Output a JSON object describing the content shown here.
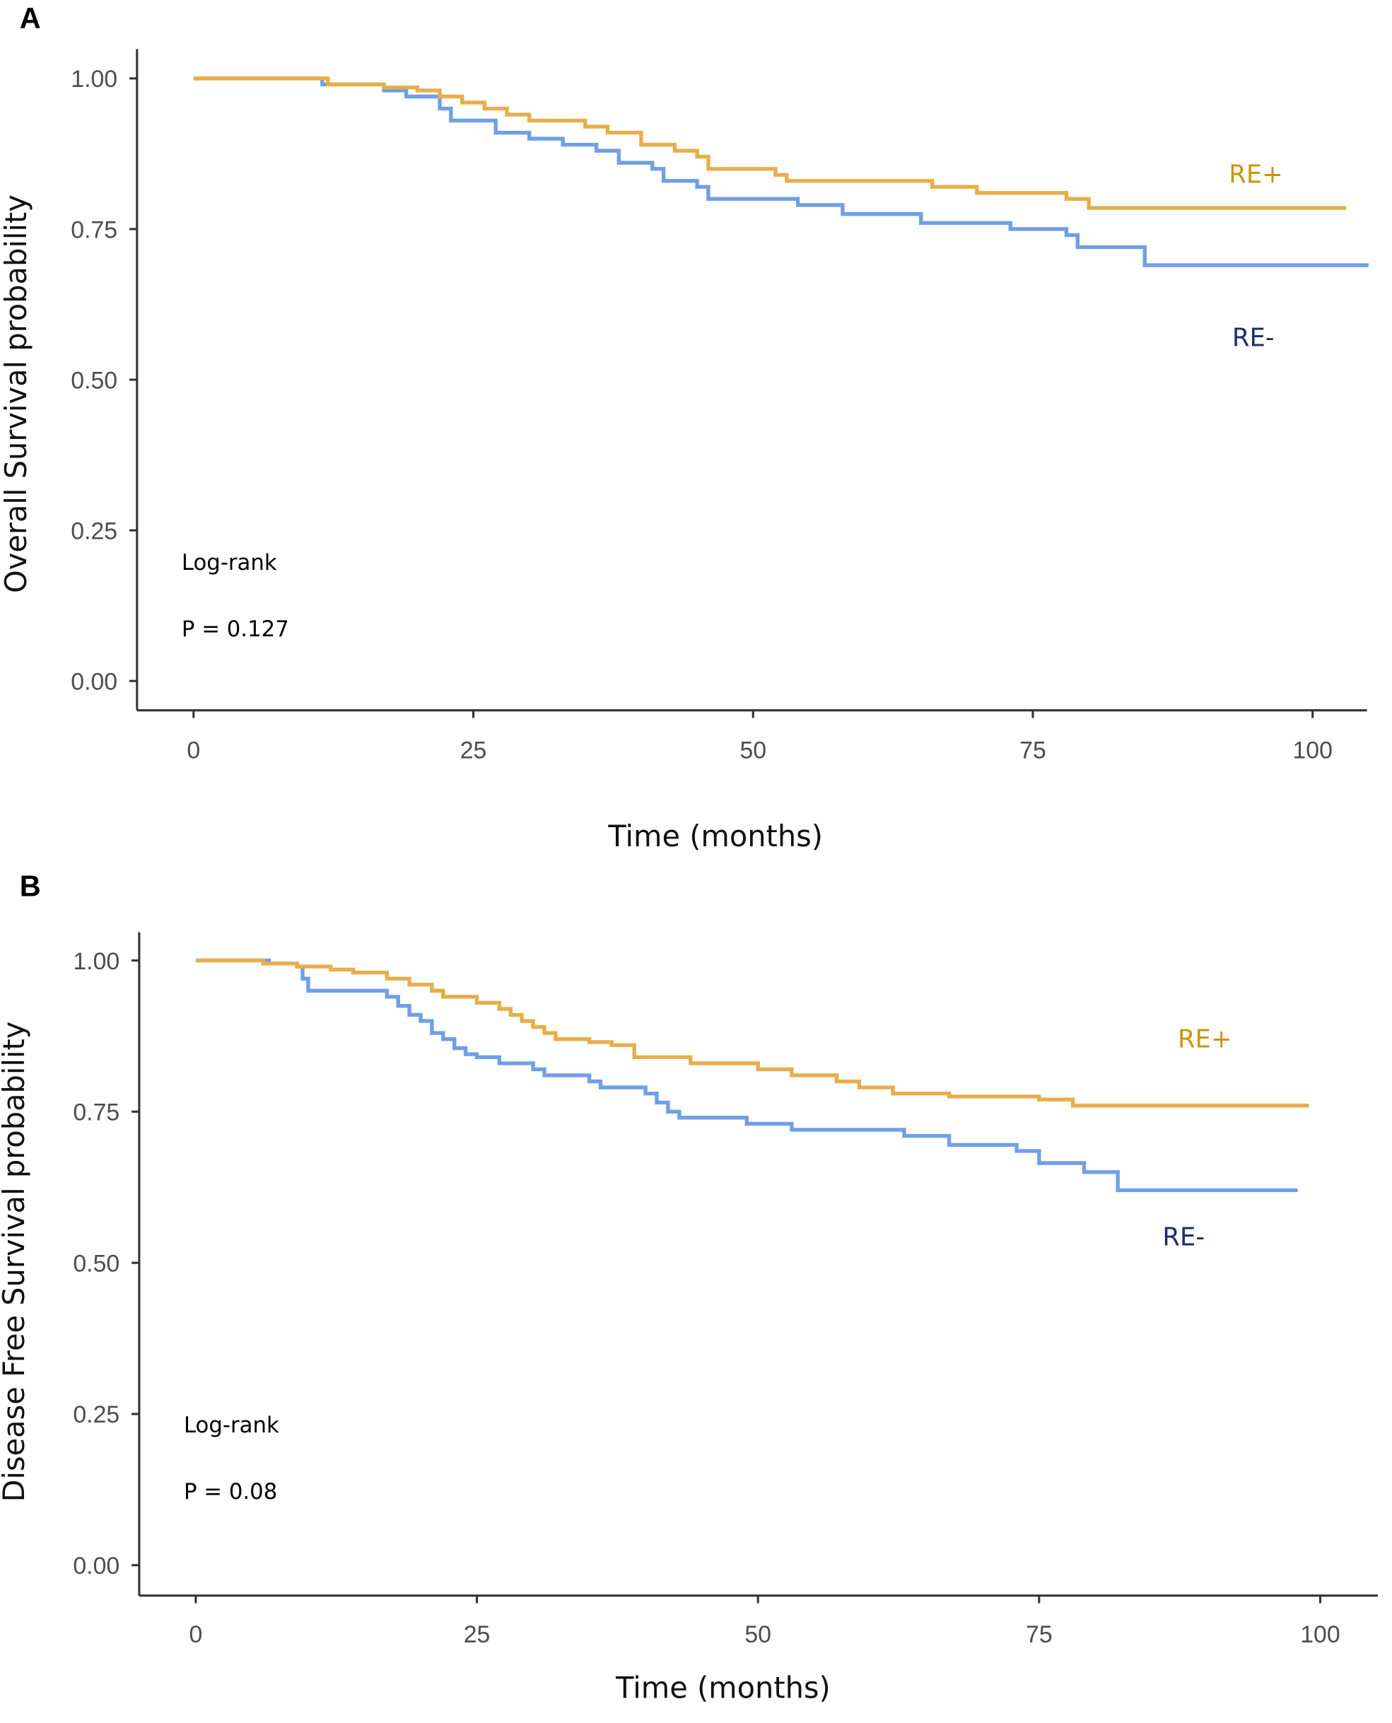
{
  "colors": {
    "re_pos": "#E8AE4A",
    "re_neg": "#6F9FE6",
    "re_pos_label": "#C8960A",
    "re_neg_label": "#1A2E6B",
    "axis": "#333333"
  },
  "chart_data": [
    {
      "type": "line",
      "panel": "A",
      "title": "",
      "xlabel": "Time (months)",
      "ylabel": "Overall Survival probability",
      "xlim": [
        0,
        105
      ],
      "ylim": [
        0,
        1
      ],
      "xticks": [
        0,
        25,
        50,
        75,
        100
      ],
      "yticks": [
        "0.00",
        "0.25",
        "0.50",
        "0.75",
        "1.00"
      ],
      "annotation": [
        "Log-rank",
        "P = 0.127"
      ],
      "grid": false,
      "step": true,
      "series": [
        {
          "name": "RE+",
          "x": [
            0,
            12,
            17,
            20,
            22,
            24,
            26,
            28,
            30,
            35,
            37,
            40,
            43,
            45,
            46,
            52,
            53,
            66,
            70,
            78,
            80,
            103
          ],
          "y": [
            1.0,
            0.99,
            0.985,
            0.98,
            0.97,
            0.96,
            0.95,
            0.94,
            0.93,
            0.92,
            0.91,
            0.89,
            0.88,
            0.87,
            0.85,
            0.84,
            0.83,
            0.82,
            0.81,
            0.8,
            0.785,
            0.785
          ]
        },
        {
          "name": "RE-",
          "x": [
            0,
            11.5,
            17,
            19,
            22,
            23,
            27,
            30,
            33,
            36,
            38,
            41,
            42,
            45,
            46,
            54,
            58,
            65,
            73,
            78,
            79,
            85,
            105
          ],
          "y": [
            1.0,
            0.99,
            0.98,
            0.97,
            0.95,
            0.93,
            0.91,
            0.9,
            0.89,
            0.88,
            0.86,
            0.85,
            0.83,
            0.82,
            0.8,
            0.79,
            0.775,
            0.76,
            0.75,
            0.74,
            0.72,
            0.69,
            0.69
          ]
        }
      ]
    },
    {
      "type": "line",
      "panel": "B",
      "title": "",
      "xlabel": "Time (months)",
      "ylabel": "Disease Free Survival probability",
      "xlim": [
        0,
        105
      ],
      "ylim": [
        0,
        1
      ],
      "xticks": [
        0,
        25,
        50,
        75,
        100
      ],
      "yticks": [
        "0.00",
        "0.25",
        "0.50",
        "0.75",
        "1.00"
      ],
      "annotation": [
        "Log-rank",
        "P = 0.08"
      ],
      "grid": false,
      "step": true,
      "series": [
        {
          "name": "RE+",
          "x": [
            0,
            6,
            9,
            12,
            14,
            17,
            19,
            21,
            22,
            25,
            27,
            28,
            29,
            30,
            31,
            32,
            35,
            37,
            39,
            44,
            50,
            53,
            57,
            59,
            62,
            67,
            75,
            78,
            99
          ],
          "y": [
            1.0,
            0.995,
            0.99,
            0.985,
            0.98,
            0.97,
            0.96,
            0.95,
            0.94,
            0.93,
            0.92,
            0.91,
            0.9,
            0.89,
            0.88,
            0.87,
            0.865,
            0.86,
            0.84,
            0.83,
            0.82,
            0.81,
            0.8,
            0.79,
            0.78,
            0.775,
            0.77,
            0.76,
            0.76
          ]
        },
        {
          "name": "RE-",
          "x": [
            0,
            6.5,
            9,
            9.5,
            10,
            17,
            18,
            19,
            20,
            21,
            22,
            23,
            24,
            25,
            27,
            30,
            31,
            35,
            36,
            40,
            41,
            42,
            43,
            49,
            53,
            63,
            67,
            73,
            75,
            79,
            82,
            98
          ],
          "y": [
            1.0,
            0.995,
            0.99,
            0.97,
            0.95,
            0.94,
            0.925,
            0.91,
            0.9,
            0.88,
            0.87,
            0.855,
            0.845,
            0.84,
            0.83,
            0.82,
            0.81,
            0.8,
            0.79,
            0.78,
            0.765,
            0.75,
            0.74,
            0.73,
            0.72,
            0.71,
            0.695,
            0.685,
            0.665,
            0.65,
            0.62,
            0.62
          ]
        }
      ]
    }
  ]
}
